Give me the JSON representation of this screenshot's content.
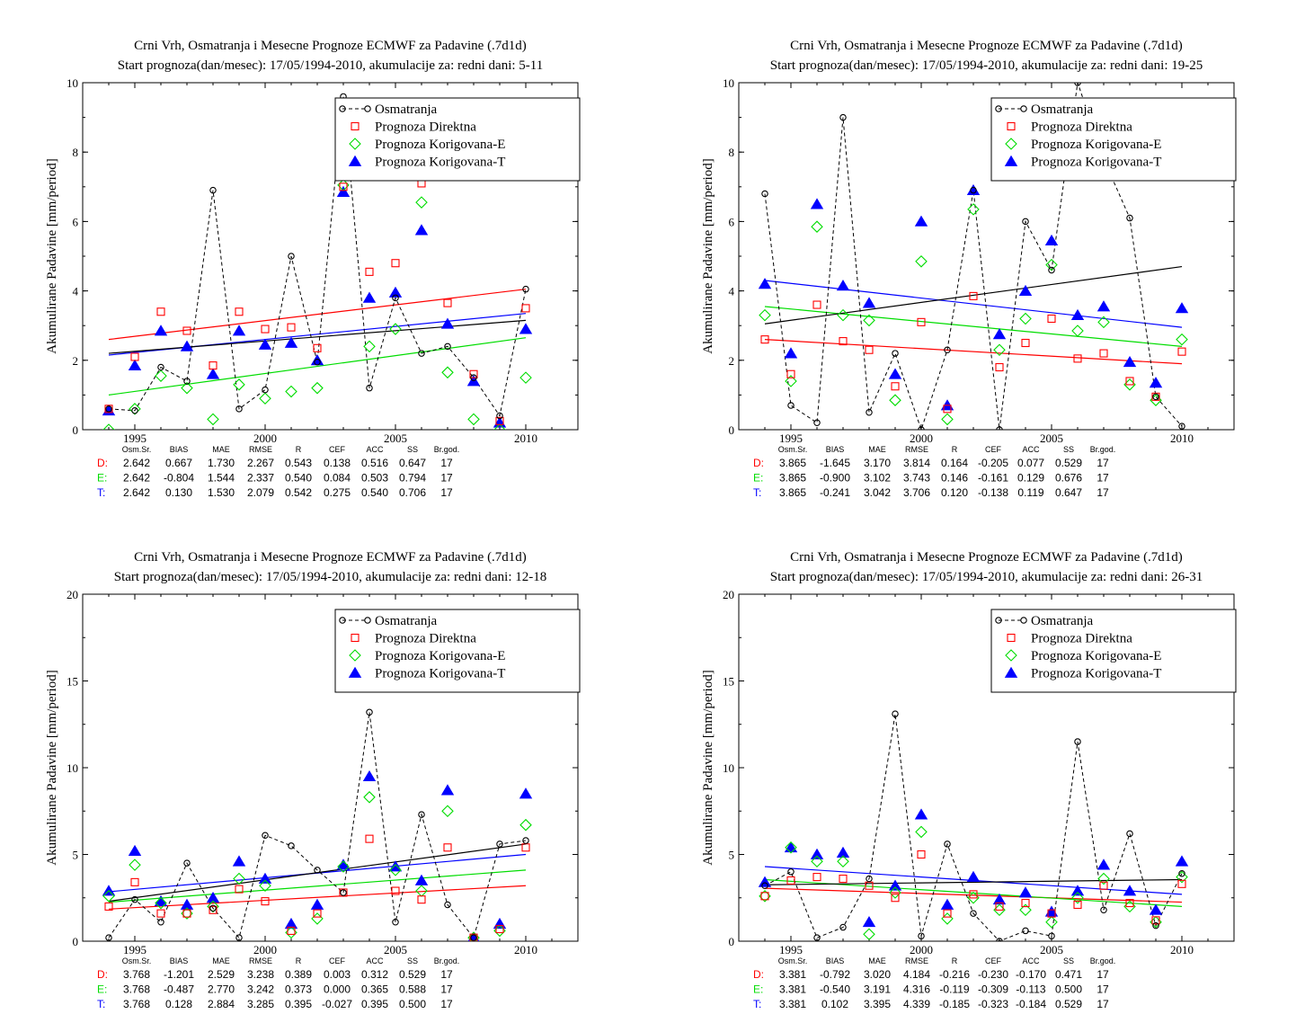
{
  "colors": {
    "obs": "#000000",
    "direct": "#ff0000",
    "corrE": "#00dd00",
    "corrT": "#0000ff"
  },
  "chart_data": [
    {
      "type": "scatter",
      "title": "Crni Vrh, Osmatranja i Mesecne Prognoze ECMWF za Padavine (.7d1d)",
      "subtitle": "Start prognoza(dan/mesec): 17/05/1994-2010, akumulacije za: redni dani: 5-11",
      "ylabel": "Akumulirane Padavine [mm/period]",
      "xlim": [
        1993,
        2012
      ],
      "ylim": [
        0,
        10
      ],
      "xticks": [
        "1995",
        "2000",
        "2005",
        "2010"
      ],
      "yticks": [
        "0",
        "2",
        "4",
        "6",
        "8",
        "10"
      ],
      "legend_position": "top-right",
      "legend": [
        "Osmatranja",
        "Prognoza Direktna",
        "Prognoza Korigovana-E",
        "Prognoza Korigovana-T"
      ],
      "x": [
        1994,
        1995,
        1996,
        1997,
        1998,
        1999,
        2000,
        2001,
        2002,
        2003,
        2004,
        2005,
        2006,
        2007,
        2008,
        2009,
        2010
      ],
      "obs": [
        0.6,
        0.55,
        1.8,
        1.4,
        6.9,
        0.6,
        1.15,
        5.0,
        1.95,
        9.6,
        1.2,
        3.8,
        2.2,
        2.4,
        1.5,
        0.4,
        4.05
      ],
      "direct": [
        0.6,
        2.1,
        3.4,
        2.85,
        1.85,
        3.4,
        2.9,
        2.95,
        2.35,
        7.0,
        4.55,
        4.8,
        7.1,
        3.65,
        1.6,
        0.25,
        3.5
      ],
      "corrE": [
        0.0,
        0.6,
        1.55,
        1.2,
        0.3,
        1.3,
        0.9,
        1.1,
        1.2,
        7.05,
        2.4,
        2.9,
        6.55,
        1.65,
        0.3,
        0.0,
        1.5
      ],
      "corrT": [
        0.55,
        1.85,
        2.85,
        2.4,
        1.6,
        2.85,
        2.45,
        2.5,
        2.0,
        6.85,
        3.8,
        3.95,
        5.75,
        3.05,
        1.4,
        0.2,
        2.9
      ],
      "trend_obs": [
        2.2,
        3.15
      ],
      "trend_direct": [
        2.6,
        4.05
      ],
      "trend_corrE": [
        1.0,
        2.65
      ],
      "trend_corrT": [
        2.15,
        3.35
      ],
      "stats_header": [
        "Osm.Sr.",
        "BIAS",
        "MAE",
        "RMSE",
        "R",
        "CEF",
        "ACC",
        "SS",
        "Br.god."
      ],
      "stats": [
        {
          "key": "D:",
          "values": [
            "2.642",
            "0.667",
            "1.730",
            "2.267",
            "0.543",
            "0.138",
            "0.516",
            "0.647",
            "17"
          ]
        },
        {
          "key": "E:",
          "values": [
            "2.642",
            "-0.804",
            "1.544",
            "2.337",
            "0.540",
            "0.084",
            "0.503",
            "0.794",
            "17"
          ]
        },
        {
          "key": "T:",
          "values": [
            "2.642",
            "0.130",
            "1.530",
            "2.079",
            "0.542",
            "0.275",
            "0.540",
            "0.706",
            "17"
          ]
        }
      ]
    },
    {
      "type": "scatter",
      "title": "Crni Vrh, Osmatranja i Mesecne Prognoze ECMWF za Padavine (.7d1d)",
      "subtitle": "Start prognoza(dan/mesec): 17/05/1994-2010, akumulacije za: redni dani: 19-25",
      "ylabel": "Akumulirane Padavine [mm/period]",
      "xlim": [
        1993,
        2012
      ],
      "ylim": [
        0,
        10
      ],
      "xticks": [
        "1995",
        "2000",
        "2005",
        "2010"
      ],
      "yticks": [
        "0",
        "2",
        "4",
        "6",
        "8",
        "10"
      ],
      "legend_position": "top-right",
      "legend": [
        "Osmatranja",
        "Prognoza Direktna",
        "Prognoza Korigovana-E",
        "Prognoza Korigovana-T"
      ],
      "x": [
        1994,
        1995,
        1996,
        1997,
        1998,
        1999,
        2000,
        2001,
        2002,
        2003,
        2004,
        2005,
        2006,
        2007,
        2008,
        2009,
        2010
      ],
      "obs": [
        6.8,
        0.7,
        0.2,
        9.0,
        0.5,
        2.2,
        0.0,
        2.3,
        6.9,
        0.0,
        6.0,
        4.6,
        10.0,
        7.8,
        6.1,
        0.95,
        0.1
      ],
      "direct": [
        2.6,
        1.6,
        3.6,
        2.55,
        2.3,
        1.25,
        3.1,
        0.6,
        3.85,
        1.8,
        2.5,
        3.2,
        2.05,
        2.2,
        1.4,
        0.95,
        2.25
      ],
      "corrE": [
        3.3,
        1.4,
        5.85,
        3.3,
        3.15,
        0.85,
        4.85,
        0.3,
        6.35,
        2.3,
        3.2,
        4.75,
        2.85,
        3.1,
        1.3,
        0.85,
        2.6
      ],
      "corrT": [
        4.2,
        2.2,
        6.5,
        4.15,
        3.65,
        1.6,
        6.0,
        0.7,
        6.9,
        2.75,
        4.0,
        5.45,
        3.3,
        3.55,
        1.95,
        1.35,
        3.5
      ],
      "trend_obs": [
        3.05,
        4.7
      ],
      "trend_direct": [
        2.6,
        1.9
      ],
      "trend_corrE": [
        3.55,
        2.4
      ],
      "trend_corrT": [
        4.3,
        2.95
      ],
      "stats_header": [
        "Osm.Sr.",
        "BIAS",
        "MAE",
        "RMSE",
        "R",
        "CEF",
        "ACC",
        "SS",
        "Br.god."
      ],
      "stats": [
        {
          "key": "D:",
          "values": [
            "3.865",
            "-1.645",
            "3.170",
            "3.814",
            "0.164",
            "-0.205",
            "0.077",
            "0.529",
            "17"
          ]
        },
        {
          "key": "E:",
          "values": [
            "3.865",
            "-0.900",
            "3.102",
            "3.743",
            "0.146",
            "-0.161",
            "0.129",
            "0.676",
            "17"
          ]
        },
        {
          "key": "T:",
          "values": [
            "3.865",
            "-0.241",
            "3.042",
            "3.706",
            "0.120",
            "-0.138",
            "0.119",
            "0.647",
            "17"
          ]
        }
      ]
    },
    {
      "type": "scatter",
      "title": "Crni Vrh, Osmatranja i Mesecne Prognoze ECMWF za Padavine (.7d1d)",
      "subtitle": "Start prognoza(dan/mesec): 17/05/1994-2010, akumulacije za: redni dani: 12-18",
      "ylabel": "Akumulirane Padavine [mm/period]",
      "xlim": [
        1993,
        2012
      ],
      "ylim": [
        0,
        20
      ],
      "xticks": [
        "1995",
        "2000",
        "2005",
        "2010"
      ],
      "yticks": [
        "0",
        "5",
        "10",
        "15",
        "20"
      ],
      "legend_position": "top-right",
      "legend": [
        "Osmatranja",
        "Prognoza Direktna",
        "Prognoza Korigovana-E",
        "Prognoza Korigovana-T"
      ],
      "x": [
        1994,
        1995,
        1996,
        1997,
        1998,
        1999,
        2000,
        2001,
        2002,
        2003,
        2004,
        2005,
        2006,
        2007,
        2008,
        2009,
        2010
      ],
      "obs": [
        0.2,
        2.4,
        1.1,
        4.5,
        1.9,
        0.2,
        6.1,
        5.5,
        4.1,
        2.8,
        13.2,
        1.1,
        7.3,
        2.1,
        0.2,
        5.6,
        5.8
      ],
      "direct": [
        2.0,
        3.4,
        1.6,
        1.6,
        1.8,
        3.0,
        2.3,
        0.6,
        1.6,
        2.8,
        5.9,
        2.9,
        2.4,
        5.4,
        0.2,
        0.7,
        5.4
      ],
      "corrE": [
        2.6,
        4.4,
        2.2,
        1.6,
        2.0,
        3.6,
        3.2,
        0.5,
        1.3,
        4.3,
        8.3,
        4.1,
        2.9,
        7.5,
        0.2,
        0.6,
        6.7
      ],
      "corrT": [
        2.9,
        5.2,
        2.3,
        2.1,
        2.5,
        4.6,
        3.6,
        1.0,
        2.1,
        4.4,
        9.5,
        4.3,
        3.5,
        8.7,
        0.2,
        1.0,
        8.5
      ],
      "trend_obs": [
        2.3,
        5.6
      ],
      "trend_direct": [
        1.85,
        3.2
      ],
      "trend_corrE": [
        2.25,
        4.1
      ],
      "trend_corrT": [
        2.85,
        5.0
      ],
      "stats_header": [
        "Osm.Sr.",
        "BIAS",
        "MAE",
        "RMSE",
        "R",
        "CEF",
        "ACC",
        "SS",
        "Br.god."
      ],
      "stats": [
        {
          "key": "D:",
          "values": [
            "3.768",
            "-1.201",
            "2.529",
            "3.238",
            "0.389",
            "0.003",
            "0.312",
            "0.529",
            "17"
          ]
        },
        {
          "key": "E:",
          "values": [
            "3.768",
            "-0.487",
            "2.770",
            "3.242",
            "0.373",
            "0.000",
            "0.365",
            "0.588",
            "17"
          ]
        },
        {
          "key": "T:",
          "values": [
            "3.768",
            "0.128",
            "2.884",
            "3.285",
            "0.395",
            "-0.027",
            "0.395",
            "0.500",
            "17"
          ]
        }
      ]
    },
    {
      "type": "scatter",
      "title": "Crni Vrh, Osmatranja i Mesecne Prognoze ECMWF za Padavine (.7d1d)",
      "subtitle": "Start prognoza(dan/mesec): 17/05/1994-2010, akumulacije za: redni dani: 26-31",
      "ylabel": "Akumulirane Padavine [mm/period]",
      "xlim": [
        1993,
        2012
      ],
      "ylim": [
        0,
        20
      ],
      "xticks": [
        "1995",
        "2000",
        "2005",
        "2010"
      ],
      "yticks": [
        "0",
        "5",
        "10",
        "15",
        "20"
      ],
      "legend_position": "top-right",
      "legend": [
        "Osmatranja",
        "Prognoza Direktna",
        "Prognoza Korigovana-E",
        "Prognoza Korigovana-T"
      ],
      "x": [
        1994,
        1995,
        1996,
        1997,
        1998,
        1999,
        2000,
        2001,
        2002,
        2003,
        2004,
        2005,
        2006,
        2007,
        2008,
        2009,
        2010
      ],
      "obs": [
        3.2,
        4.0,
        0.2,
        0.8,
        3.6,
        13.1,
        0.3,
        5.6,
        1.6,
        0.0,
        0.6,
        0.3,
        11.5,
        1.8,
        6.2,
        0.9,
        3.9
      ],
      "direct": [
        2.6,
        3.5,
        3.7,
        3.6,
        3.2,
        2.5,
        5.0,
        1.6,
        2.7,
        2.0,
        2.2,
        1.6,
        2.1,
        3.2,
        2.2,
        1.2,
        3.3
      ],
      "corrE": [
        2.6,
        5.4,
        4.6,
        4.6,
        0.4,
        2.8,
        6.3,
        1.3,
        2.5,
        1.8,
        1.8,
        1.1,
        2.5,
        3.6,
        2.0,
        1.1,
        3.7
      ],
      "corrT": [
        3.4,
        5.4,
        5.0,
        5.1,
        1.1,
        3.2,
        7.3,
        2.1,
        3.7,
        2.4,
        2.8,
        1.7,
        2.9,
        4.4,
        2.9,
        1.8,
        4.6
      ],
      "trend_obs": [
        3.25,
        3.55
      ],
      "trend_direct": [
        3.05,
        2.25
      ],
      "trend_corrE": [
        3.55,
        2.0
      ],
      "trend_corrT": [
        4.3,
        2.7
      ],
      "stats_header": [
        "Osm.Sr.",
        "BIAS",
        "MAE",
        "RMSE",
        "R",
        "CEF",
        "ACC",
        "SS",
        "Br.god."
      ],
      "stats": [
        {
          "key": "D:",
          "values": [
            "3.381",
            "-0.792",
            "3.020",
            "4.184",
            "-0.216",
            "-0.230",
            "-0.170",
            "0.471",
            "17"
          ]
        },
        {
          "key": "E:",
          "values": [
            "3.381",
            "-0.540",
            "3.191",
            "4.316",
            "-0.119",
            "-0.309",
            "-0.113",
            "0.500",
            "17"
          ]
        },
        {
          "key": "T:",
          "values": [
            "3.381",
            "0.102",
            "3.395",
            "4.339",
            "-0.185",
            "-0.323",
            "-0.184",
            "0.529",
            "17"
          ]
        }
      ]
    }
  ]
}
